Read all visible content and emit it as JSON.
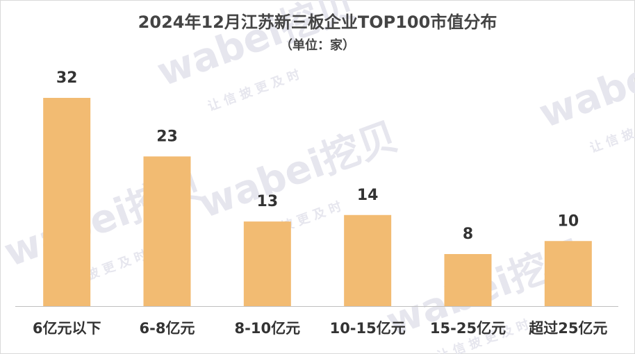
{
  "chart_data": {
    "type": "bar",
    "title": "2024年12月江苏新三板企业TOP100市值分布",
    "subtitle": "（单位：家）",
    "categories": [
      "6亿元以下",
      "6-8亿元",
      "8-10亿元",
      "10-15亿元",
      "15-25亿元",
      "超过25亿元"
    ],
    "values": [
      32,
      23,
      13,
      14,
      8,
      10
    ],
    "color": "#f2bb72",
    "ylim": [
      0,
      32
    ],
    "watermark": "wabei挖贝",
    "watermark_tagline": "让 信 披 更 及 时"
  }
}
